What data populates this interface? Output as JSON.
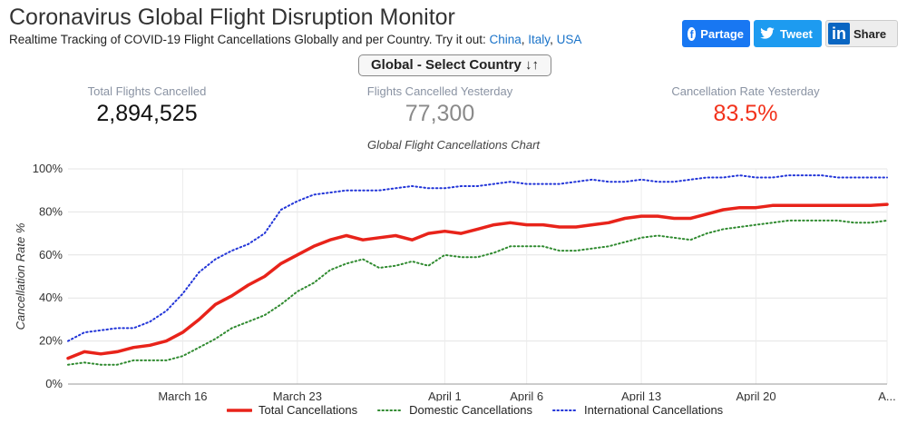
{
  "header": {
    "title": "Coronavirus Global Flight Disruption Monitor",
    "subtitle_prefix": "Realtime Tracking of COVID-19 Flight Cancellations Globally and per Country. Try it out:",
    "links": [
      "China",
      "Italy",
      "USA"
    ]
  },
  "share": {
    "facebook_label": "Partage",
    "twitter_label": "Tweet",
    "linkedin_label": "Share"
  },
  "selector": {
    "label": "Global - Select Country ↓↑"
  },
  "stats": [
    {
      "label": "Total Flights Cancelled",
      "value": "2,894,525",
      "color": "#111111"
    },
    {
      "label": "Flights Cancelled Yesterday",
      "value": "77,300",
      "color": "#8a8a8a"
    },
    {
      "label": "Cancellation Rate Yesterday",
      "value": "83.5%",
      "color": "#f2321c"
    }
  ],
  "chart_data": {
    "type": "line",
    "title": "Global Flight Cancellations Chart",
    "ylabel": "Cancellation Rate %",
    "xlabel": "",
    "ylim": [
      0,
      100
    ],
    "yticks": [
      "0%",
      "20%",
      "40%",
      "60%",
      "80%",
      "100%"
    ],
    "x": [
      "Mar 9",
      "Mar 10",
      "Mar 11",
      "Mar 12",
      "Mar 13",
      "Mar 14",
      "Mar 15",
      "Mar 16",
      "Mar 17",
      "Mar 18",
      "Mar 19",
      "Mar 20",
      "Mar 21",
      "Mar 22",
      "Mar 23",
      "Mar 24",
      "Mar 25",
      "Mar 26",
      "Mar 27",
      "Mar 28",
      "Mar 29",
      "Mar 30",
      "Mar 31",
      "Apr 1",
      "Apr 2",
      "Apr 3",
      "Apr 4",
      "Apr 5",
      "Apr 6",
      "Apr 7",
      "Apr 8",
      "Apr 9",
      "Apr 10",
      "Apr 11",
      "Apr 12",
      "Apr 13",
      "Apr 14",
      "Apr 15",
      "Apr 16",
      "Apr 17",
      "Apr 18",
      "Apr 19",
      "Apr 20",
      "Apr 21",
      "Apr 22",
      "Apr 23",
      "Apr 24",
      "Apr 25",
      "Apr 26",
      "Apr 27",
      "Apr 28"
    ],
    "xtick_labels": [
      {
        "label": "March 16",
        "x": "Mar 16"
      },
      {
        "label": "March 23",
        "x": "Mar 23"
      },
      {
        "label": "April 1",
        "x": "Apr 1"
      },
      {
        "label": "April 6",
        "x": "Apr 6"
      },
      {
        "label": "April 13",
        "x": "Apr 13"
      },
      {
        "label": "April 20",
        "x": "Apr 20"
      },
      {
        "label": "A...",
        "x": "Apr 28"
      }
    ],
    "series": [
      {
        "name": "Total Cancellations",
        "color": "#e8231a",
        "style": "solid",
        "values": [
          12,
          15,
          14,
          15,
          17,
          18,
          20,
          24,
          30,
          37,
          41,
          46,
          50,
          56,
          60,
          64,
          67,
          69,
          67,
          68,
          69,
          67,
          70,
          71,
          70,
          72,
          74,
          75,
          74,
          74,
          73,
          73,
          74,
          75,
          77,
          78,
          78,
          77,
          77,
          79,
          81,
          82,
          82,
          83,
          83,
          83,
          83,
          83,
          83,
          83,
          83.5
        ]
      },
      {
        "name": "Domestic Cancellations",
        "color": "#2f8a2f",
        "style": "dotted",
        "values": [
          9,
          10,
          9,
          9,
          11,
          11,
          11,
          13,
          17,
          21,
          26,
          29,
          32,
          37,
          43,
          47,
          53,
          56,
          58,
          54,
          55,
          57,
          55,
          60,
          59,
          59,
          61,
          64,
          64,
          64,
          62,
          62,
          63,
          64,
          66,
          68,
          69,
          68,
          67,
          70,
          72,
          73,
          74,
          75,
          76,
          76,
          76,
          76,
          75,
          75,
          76
        ]
      },
      {
        "name": "International Cancellations",
        "color": "#2235d8",
        "style": "dotted",
        "values": [
          20,
          24,
          25,
          26,
          26,
          29,
          34,
          42,
          52,
          58,
          62,
          65,
          70,
          81,
          85,
          88,
          89,
          90,
          90,
          90,
          91,
          92,
          91,
          91,
          92,
          92,
          93,
          94,
          93,
          93,
          93,
          94,
          95,
          94,
          94,
          95,
          94,
          94,
          95,
          96,
          96,
          97,
          96,
          96,
          97,
          97,
          97,
          96,
          96,
          96,
          96
        ]
      }
    ],
    "grid": true,
    "legend": "bottom"
  }
}
